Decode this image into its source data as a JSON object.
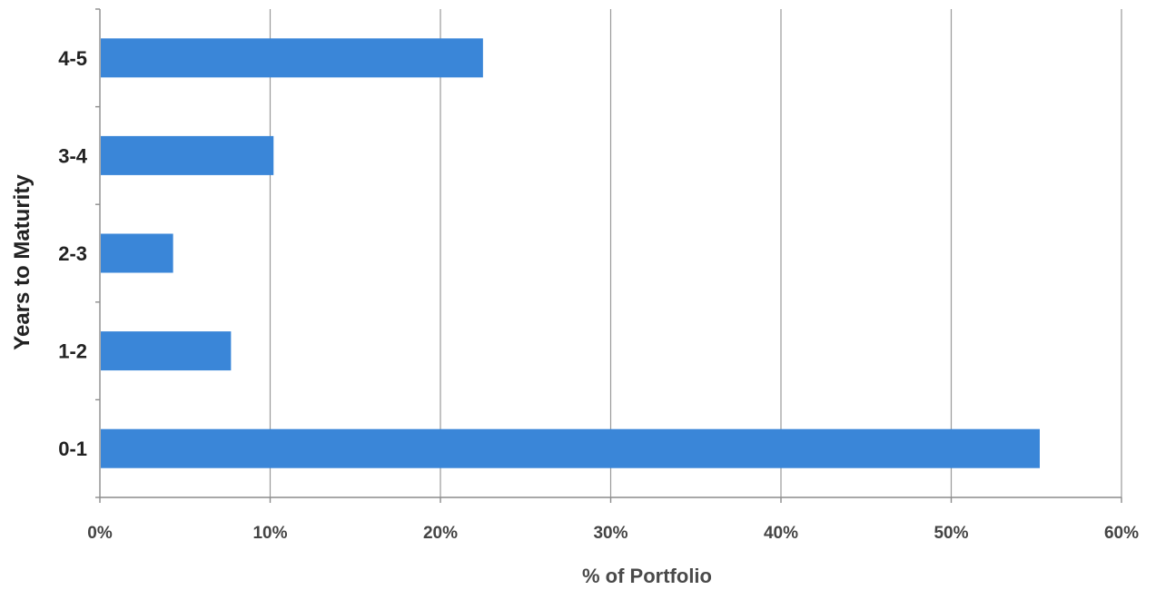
{
  "chart_data": {
    "type": "bar",
    "orientation": "horizontal",
    "categories": [
      "0-1",
      "1-2",
      "2-3",
      "3-4",
      "4-5"
    ],
    "values": [
      55.2,
      7.7,
      4.3,
      10.2,
      22.5
    ],
    "xlabel": "% of Portfolio",
    "ylabel": "Years to Maturity",
    "xlim": [
      0,
      60
    ],
    "x_ticks": [
      0,
      10,
      20,
      30,
      40,
      50,
      60
    ],
    "x_tick_labels": [
      "0%",
      "10%",
      "20%",
      "30%",
      "40%",
      "50%",
      "60%"
    ],
    "grid": "vertical",
    "legend": "none",
    "bar_color": "#3a86d8"
  }
}
